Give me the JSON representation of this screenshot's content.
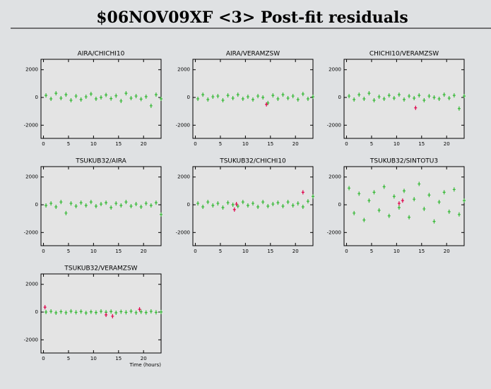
{
  "title": "$06NOV09XF <3> Post-fit residuals",
  "chart_data": [
    {
      "type": "scatter",
      "title": "AIRA/CHICHI10",
      "xlim": [
        -0.5,
        23.5
      ],
      "ylim": [
        -2950,
        2750
      ],
      "xticks": [
        0,
        5,
        10,
        15,
        20
      ],
      "yticks": [
        -2000,
        0,
        2000
      ],
      "series": [
        {
          "color": "#33b833",
          "x": [
            0.5,
            1.5,
            2.5,
            3.5,
            4.5,
            5.5,
            6.5,
            7.5,
            8.5,
            9.5,
            10.5,
            11.5,
            12.5,
            13.5,
            14.5,
            15.5,
            16.5,
            17.5,
            18.5,
            19.5,
            20.5,
            21.5,
            22.5,
            23.5
          ],
          "y": [
            150,
            -100,
            300,
            -50,
            200,
            -200,
            100,
            -150,
            50,
            250,
            -100,
            0,
            180,
            -80,
            120,
            -250,
            300,
            -50,
            100,
            -120,
            60,
            -600,
            200,
            -100
          ]
        }
      ]
    },
    {
      "type": "scatter",
      "title": "AIRA/VERAMZSW",
      "xlim": [
        -0.5,
        23.5
      ],
      "ylim": [
        -2950,
        2750
      ],
      "xticks": [
        0,
        5,
        10,
        15,
        20
      ],
      "yticks": [
        -2000,
        0,
        2000
      ],
      "series": [
        {
          "color": "#33b833",
          "x": [
            0.5,
            1.5,
            2.5,
            3.5,
            4.5,
            5.5,
            6.5,
            7.5,
            8.5,
            9.5,
            10.5,
            11.5,
            12.5,
            13.5,
            14.5,
            15.5,
            16.5,
            17.5,
            18.5,
            19.5,
            20.5,
            21.5,
            22.5,
            23.5
          ],
          "y": [
            -100,
            200,
            -150,
            50,
            100,
            -200,
            150,
            -50,
            200,
            -100,
            50,
            -150,
            100,
            0,
            -400,
            150,
            -100,
            200,
            -50,
            100,
            -150,
            250,
            -100,
            50
          ]
        },
        {
          "color": "#e0004a",
          "x": [
            14.2
          ],
          "y": [
            -500
          ]
        }
      ]
    },
    {
      "type": "scatter",
      "title": "CHICHI10/VERAMZSW",
      "xlim": [
        -0.5,
        23.5
      ],
      "ylim": [
        -2950,
        2750
      ],
      "xticks": [
        0,
        5,
        10,
        15,
        20
      ],
      "yticks": [
        -2000,
        0,
        2000
      ],
      "series": [
        {
          "color": "#33b833",
          "x": [
            0.5,
            1.5,
            2.5,
            3.5,
            4.5,
            5.5,
            6.5,
            7.5,
            8.5,
            9.5,
            10.5,
            11.5,
            12.5,
            13.5,
            14.5,
            15.5,
            16.5,
            17.5,
            18.5,
            19.5,
            20.5,
            21.5,
            22.5,
            23.5
          ],
          "y": [
            100,
            -150,
            200,
            -100,
            300,
            -200,
            50,
            -100,
            150,
            -50,
            200,
            -150,
            100,
            -50,
            150,
            -200,
            100,
            0,
            -100,
            200,
            -50,
            150,
            -800,
            100
          ]
        },
        {
          "color": "#e0004a",
          "x": [
            13.8
          ],
          "y": [
            -750
          ]
        }
      ]
    },
    {
      "type": "scatter",
      "title": "TSUKUB32/AIRA",
      "xlim": [
        -0.5,
        23.5
      ],
      "ylim": [
        -2950,
        2750
      ],
      "xticks": [
        0,
        5,
        10,
        15,
        20
      ],
      "yticks": [
        -2000,
        0,
        2000
      ],
      "series": [
        {
          "color": "#33b833",
          "x": [
            0.5,
            1.5,
            2.5,
            3.5,
            4.5,
            5.5,
            6.5,
            7.5,
            8.5,
            9.5,
            10.5,
            11.5,
            12.5,
            13.5,
            14.5,
            15.5,
            16.5,
            17.5,
            18.5,
            19.5,
            20.5,
            21.5,
            22.5,
            23.5
          ],
          "y": [
            -50,
            100,
            -150,
            200,
            -600,
            100,
            -100,
            150,
            -50,
            200,
            -100,
            50,
            150,
            -200,
            100,
            -50,
            200,
            -100,
            50,
            -150,
            100,
            -50,
            150,
            -700
          ]
        }
      ]
    },
    {
      "type": "scatter",
      "title": "TSUKUB32/CHICHI10",
      "xlim": [
        -0.5,
        23.5
      ],
      "ylim": [
        -2950,
        2750
      ],
      "xticks": [
        0,
        5,
        10,
        15,
        20
      ],
      "yticks": [
        -2000,
        0,
        2000
      ],
      "series": [
        {
          "color": "#33b833",
          "x": [
            0.5,
            1.5,
            2.5,
            3.5,
            4.5,
            5.5,
            6.5,
            7.5,
            8.5,
            9.5,
            10.5,
            11.5,
            12.5,
            13.5,
            14.5,
            15.5,
            16.5,
            17.5,
            18.5,
            19.5,
            20.5,
            21.5,
            22.5,
            23.5
          ],
          "y": [
            100,
            -150,
            200,
            -50,
            100,
            -200,
            150,
            0,
            -100,
            200,
            -50,
            100,
            -150,
            200,
            -100,
            50,
            150,
            -100,
            200,
            -50,
            100,
            -150,
            250,
            600
          ]
        },
        {
          "color": "#e0004a",
          "x": [
            7.8,
            8.2,
            21.5
          ],
          "y": [
            -350,
            50,
            900
          ]
        }
      ]
    },
    {
      "type": "scatter",
      "title": "TSUKUB32/SINTOTU3",
      "xlim": [
        -0.5,
        23.5
      ],
      "ylim": [
        -2950,
        2750
      ],
      "xticks": [
        0,
        5,
        10,
        15,
        20
      ],
      "yticks": [
        -2000,
        0,
        2000
      ],
      "series": [
        {
          "color": "#33b833",
          "x": [
            0.5,
            1.5,
            2.5,
            3.5,
            4.5,
            5.5,
            6.5,
            7.5,
            8.5,
            9.5,
            10.5,
            11.5,
            12.5,
            13.5,
            14.5,
            15.5,
            16.5,
            17.5,
            18.5,
            19.5,
            20.5,
            21.5,
            22.5,
            23.5
          ],
          "y": [
            1200,
            -600,
            800,
            -1100,
            300,
            900,
            -400,
            1300,
            -800,
            600,
            -200,
            1000,
            -900,
            400,
            1500,
            -300,
            700,
            -1200,
            200,
            900,
            -500,
            1100,
            -700,
            300
          ]
        },
        {
          "color": "#e0004a",
          "x": [
            10.5,
            11.2
          ],
          "y": [
            100,
            300
          ]
        }
      ]
    },
    {
      "type": "scatter",
      "title": "TSUKUB32/VERAMZSW",
      "xlabel": "Time (hours)",
      "xlim": [
        -0.5,
        23.5
      ],
      "ylim": [
        -2950,
        2750
      ],
      "xticks": [
        0,
        5,
        10,
        15,
        20
      ],
      "yticks": [
        -2000,
        0,
        2000
      ],
      "series": [
        {
          "color": "#33b833",
          "x": [
            0.5,
            1.5,
            2.5,
            3.5,
            4.5,
            5.5,
            6.5,
            7.5,
            8.5,
            9.5,
            10.5,
            11.5,
            12.5,
            13.5,
            14.5,
            15.5,
            16.5,
            17.5,
            18.5,
            19.5,
            20.5,
            21.5,
            22.5,
            23.5
          ],
          "y": [
            0,
            50,
            -50,
            30,
            -40,
            60,
            -20,
            40,
            -60,
            20,
            -30,
            50,
            -10,
            40,
            -50,
            30,
            -20,
            60,
            -40,
            20,
            -30,
            50,
            -20,
            10
          ]
        },
        {
          "color": "#e0004a",
          "x": [
            0.3,
            12.5,
            13.8,
            19.2
          ],
          "y": [
            350,
            -200,
            -300,
            200
          ]
        }
      ]
    }
  ]
}
